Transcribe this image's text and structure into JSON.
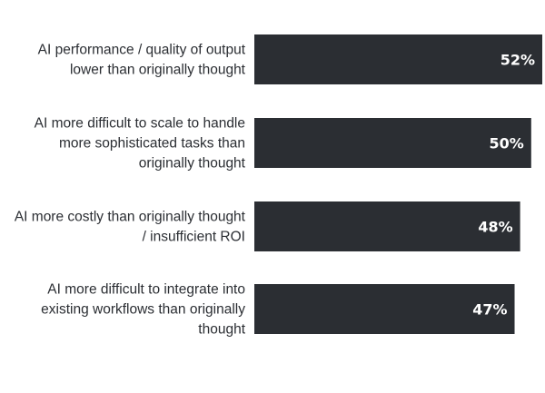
{
  "chart_data": {
    "type": "bar",
    "orientation": "horizontal",
    "categories": [
      [
        "AI performance / quality of output",
        "lower than originally thought"
      ],
      [
        "AI more difficult to scale to handle",
        "more sophisticated tasks than",
        "originally thought"
      ],
      [
        "AI more costly than originally thought",
        "/ insufficient ROI"
      ],
      [
        "AI more difficult to integrate into",
        "existing workflows than originally",
        "thought"
      ]
    ],
    "values": [
      52,
      50,
      48,
      47
    ],
    "value_labels": [
      "52%",
      "50%",
      "48%",
      "47%"
    ],
    "unit": "%",
    "bar_color": "#2b2e33",
    "value_label_color": "#ffffff",
    "label_color": "#2b2e33",
    "legend": false,
    "grid": false
  }
}
